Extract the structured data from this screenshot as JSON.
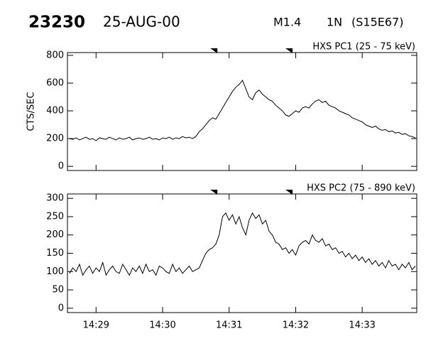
{
  "header": {
    "id": "23230",
    "date": "25-AUG-00",
    "class": "M1.4",
    "importance": "1N",
    "location": "(S15E67)"
  },
  "chart_data": [
    {
      "type": "line",
      "title": "HXS PC1 (25 - 75 keV)",
      "ylabel": "CTS/SEC",
      "color": "#000000",
      "xlim": [
        28.57,
        33.82
      ],
      "ylim": [
        -30,
        820
      ],
      "yticks": [
        0,
        200,
        400,
        600,
        800
      ],
      "markers": [
        30.77,
        31.9
      ],
      "x": [
        28.6,
        28.65,
        28.7,
        28.75,
        28.8,
        28.85,
        28.9,
        28.95,
        29,
        29.05,
        29.1,
        29.15,
        29.2,
        29.25,
        29.3,
        29.35,
        29.4,
        29.45,
        29.5,
        29.55,
        29.6,
        29.65,
        29.7,
        29.75,
        29.8,
        29.85,
        29.9,
        29.95,
        30,
        30.05,
        30.1,
        30.15,
        30.2,
        30.25,
        30.3,
        30.35,
        30.4,
        30.45,
        30.5,
        30.55,
        30.6,
        30.65,
        30.7,
        30.75,
        30.8,
        30.85,
        30.9,
        30.95,
        31,
        31.05,
        31.1,
        31.15,
        31.2,
        31.25,
        31.3,
        31.35,
        31.4,
        31.45,
        31.5,
        31.55,
        31.6,
        31.65,
        31.7,
        31.75,
        31.8,
        31.85,
        31.9,
        31.95,
        32,
        32.05,
        32.1,
        32.15,
        32.2,
        32.25,
        32.3,
        32.35,
        32.4,
        32.45,
        32.5,
        32.55,
        32.6,
        32.65,
        32.7,
        32.75,
        32.8,
        32.85,
        32.9,
        32.95,
        33,
        33.05,
        33.1,
        33.15,
        33.2,
        33.25,
        33.3,
        33.35,
        33.4,
        33.45,
        33.5,
        33.55,
        33.6,
        33.65,
        33.7,
        33.75,
        33.8
      ],
      "values": [
        200,
        195,
        205,
        190,
        200,
        210,
        195,
        200,
        185,
        205,
        200,
        195,
        210,
        200,
        190,
        205,
        195,
        200,
        210,
        190,
        200,
        205,
        195,
        200,
        210,
        195,
        200,
        190,
        205,
        200,
        210,
        195,
        205,
        200,
        215,
        205,
        210,
        200,
        215,
        250,
        270,
        300,
        330,
        350,
        340,
        380,
        420,
        460,
        500,
        540,
        570,
        590,
        620,
        560,
        500,
        480,
        530,
        550,
        520,
        500,
        480,
        470,
        440,
        420,
        400,
        370,
        360,
        380,
        400,
        390,
        420,
        430,
        420,
        450,
        470,
        480,
        460,
        470,
        440,
        430,
        420,
        400,
        390,
        380,
        370,
        350,
        340,
        330,
        320,
        300,
        290,
        280,
        290,
        270,
        260,
        265,
        250,
        255,
        240,
        245,
        230,
        235,
        220,
        215,
        205
      ]
    },
    {
      "type": "line",
      "title": "HXS PC2 (75 - 890 keV)",
      "color": "#000000",
      "xlim": [
        28.57,
        33.82
      ],
      "ylim": [
        -12,
        312
      ],
      "yticks": [
        0,
        50,
        100,
        150,
        200,
        250,
        300
      ],
      "xticks": [
        {
          "value": 29,
          "label": "14:29"
        },
        {
          "value": 30,
          "label": "14:30"
        },
        {
          "value": 31,
          "label": "14:31"
        },
        {
          "value": 32,
          "label": "14:32"
        },
        {
          "value": 33,
          "label": "14:33"
        }
      ],
      "markers": [
        30.77,
        31.9
      ],
      "x": [
        28.6,
        28.65,
        28.7,
        28.75,
        28.8,
        28.85,
        28.9,
        28.95,
        29,
        29.05,
        29.1,
        29.15,
        29.2,
        29.25,
        29.3,
        29.35,
        29.4,
        29.45,
        29.5,
        29.55,
        29.6,
        29.65,
        29.7,
        29.75,
        29.8,
        29.85,
        29.9,
        29.95,
        30,
        30.05,
        30.1,
        30.15,
        30.2,
        30.25,
        30.3,
        30.35,
        30.4,
        30.45,
        30.5,
        30.55,
        30.6,
        30.65,
        30.7,
        30.75,
        30.8,
        30.85,
        30.9,
        30.95,
        31,
        31.05,
        31.1,
        31.15,
        31.2,
        31.25,
        31.3,
        31.35,
        31.4,
        31.45,
        31.5,
        31.55,
        31.6,
        31.65,
        31.7,
        31.75,
        31.8,
        31.85,
        31.9,
        31.95,
        32,
        32.05,
        32.1,
        32.15,
        32.2,
        32.25,
        32.3,
        32.35,
        32.4,
        32.45,
        32.5,
        32.55,
        32.6,
        32.65,
        32.7,
        32.75,
        32.8,
        32.85,
        32.9,
        32.95,
        33,
        33.05,
        33.1,
        33.15,
        33.2,
        33.25,
        33.3,
        33.35,
        33.4,
        33.45,
        33.5,
        33.55,
        33.6,
        33.65,
        33.7,
        33.75,
        33.8
      ],
      "values": [
        95,
        110,
        100,
        120,
        90,
        105,
        115,
        95,
        110,
        100,
        125,
        90,
        105,
        115,
        100,
        95,
        120,
        105,
        90,
        110,
        100,
        115,
        95,
        120,
        100,
        105,
        90,
        115,
        110,
        100,
        95,
        120,
        100,
        110,
        95,
        105,
        115,
        100,
        105,
        110,
        130,
        150,
        160,
        165,
        175,
        200,
        250,
        260,
        240,
        255,
        230,
        250,
        220,
        200,
        240,
        260,
        245,
        255,
        230,
        240,
        210,
        200,
        180,
        175,
        160,
        165,
        150,
        160,
        145,
        170,
        180,
        185,
        175,
        200,
        185,
        180,
        190,
        170,
        175,
        160,
        165,
        150,
        155,
        140,
        150,
        135,
        145,
        130,
        140,
        125,
        135,
        120,
        130,
        115,
        125,
        110,
        130,
        115,
        120,
        105,
        120,
        110,
        125,
        105,
        115
      ]
    }
  ]
}
